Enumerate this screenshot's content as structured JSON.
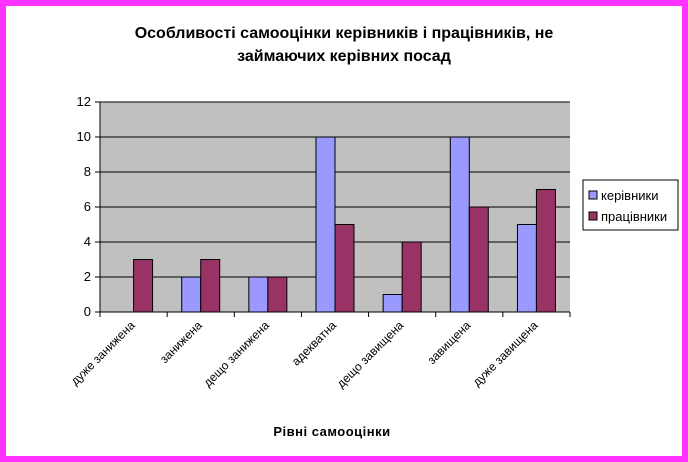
{
  "chart_data": {
    "type": "bar",
    "title_lines": [
      "Особливості самооцінки керівників і працівників, не",
      "займаючих керівних посад"
    ],
    "xlabel": "Рівні самооцінки",
    "ylabel": "",
    "categories": [
      "дуже занижена",
      "занижена",
      "дещо занижена",
      "адекватна",
      "дещо завищена",
      "завищена",
      "дуже завищена"
    ],
    "series": [
      {
        "name": "керівники",
        "color": "#9999ff",
        "values": [
          0,
          2,
          2,
          10,
          1,
          10,
          5
        ]
      },
      {
        "name": "працівники",
        "color": "#993366",
        "values": [
          3,
          3,
          2,
          5,
          4,
          6,
          7
        ]
      }
    ],
    "ylim": [
      0,
      12
    ],
    "yticks": [
      0,
      2,
      4,
      6,
      8,
      10,
      12
    ],
    "plot_background": "#c0c0c0",
    "frame_color": "#ff33ff",
    "grid": true,
    "legend_position": "right"
  }
}
